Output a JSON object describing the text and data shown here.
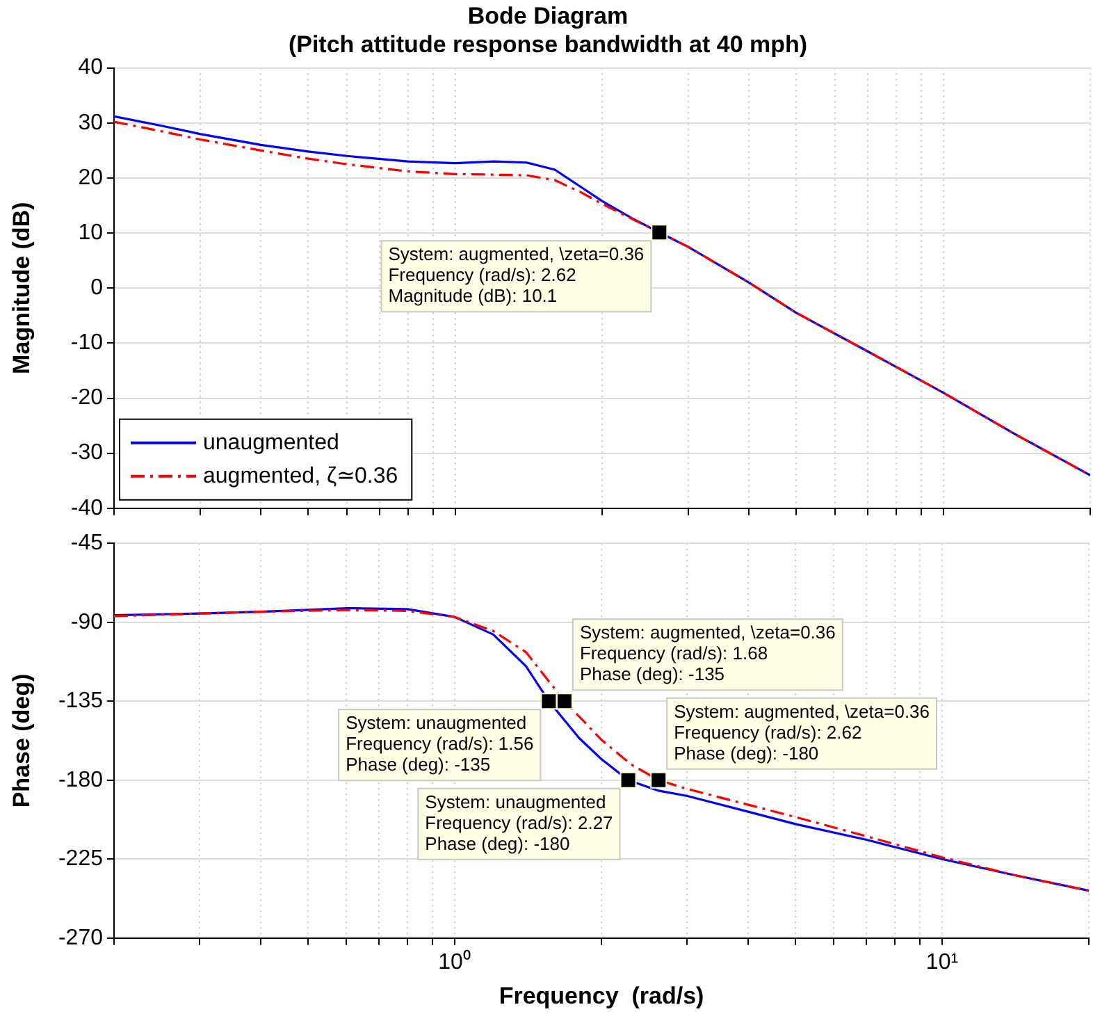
{
  "chart_data": [
    {
      "type": "line",
      "title": "Bode Diagram\n(Pitch attitude response bandwidth at 40 mph)",
      "ylabel": "Magnitude (dB)",
      "log": "x",
      "xlim": [
        0.2,
        20
      ],
      "xticks": [
        {
          "value": 0.2,
          "label": null
        },
        {
          "value": 0.3,
          "label": null
        },
        {
          "value": 0.4,
          "label": null
        },
        {
          "value": 0.5,
          "label": null
        },
        {
          "value": 0.6,
          "label": null
        },
        {
          "value": 0.7,
          "label": null
        },
        {
          "value": 0.8,
          "label": null
        },
        {
          "value": 0.9,
          "label": null
        },
        {
          "value": 1,
          "label": null
        },
        {
          "value": 2,
          "label": null
        },
        {
          "value": 3,
          "label": null
        },
        {
          "value": 4,
          "label": null
        },
        {
          "value": 5,
          "label": null
        },
        {
          "value": 6,
          "label": null
        },
        {
          "value": 7,
          "label": null
        },
        {
          "value": 8,
          "label": null
        },
        {
          "value": 9,
          "label": null
        },
        {
          "value": 10,
          "label": null
        },
        {
          "value": 20,
          "label": null
        }
      ],
      "ylim": [
        -40,
        40
      ],
      "yticks": [
        -40,
        -30,
        -20,
        -10,
        0,
        10,
        20,
        30,
        40
      ],
      "grid": true,
      "legend": "bottom left",
      "tick_labels": "y",
      "marker": "none",
      "series": [
        {
          "name": "unaugmented",
          "color": "#0000ff",
          "line_style": "solid",
          "x": [
            0.2,
            0.25,
            0.3,
            0.4,
            0.5,
            0.6,
            0.8,
            1.0,
            1.2,
            1.4,
            1.6,
            1.8,
            2.0,
            2.3,
            2.62,
            3,
            4,
            5,
            7,
            10,
            14,
            20
          ],
          "values": [
            31.2,
            29.5,
            28,
            26,
            24.8,
            24,
            23,
            22.7,
            23,
            22.8,
            21.5,
            18.5,
            15.8,
            12.7,
            10.1,
            7.5,
            1,
            -4.5,
            -11.5,
            -19,
            -26.5,
            -34
          ]
        },
        {
          "name": "augmented, ζ≃0.36",
          "color": "#ff0000",
          "line_style": "dashed",
          "x": [
            0.2,
            0.25,
            0.3,
            0.4,
            0.5,
            0.6,
            0.8,
            1.0,
            1.2,
            1.4,
            1.6,
            1.8,
            2.0,
            2.3,
            2.62,
            3,
            4,
            5,
            7,
            10,
            14,
            20
          ],
          "values": [
            30.2,
            28.5,
            27,
            25,
            23.5,
            22.5,
            21.2,
            20.7,
            20.6,
            20.5,
            19.6,
            17.5,
            15.3,
            12.6,
            10.1,
            7.5,
            1,
            -4.5,
            -11.5,
            -19,
            -26.5,
            -34
          ]
        }
      ],
      "annotations": [
        {
          "text": "System: augmented, \\zeta=0.36\nFrequency (rad/s): 2.62\nMagnitude (dB): 10.1",
          "x": 2.62,
          "y": 10.1
        }
      ]
    },
    {
      "type": "line",
      "xlabel": "Frequency  (rad/s)",
      "ylabel": "Phase (deg)",
      "log": "x",
      "xlim": [
        0.2,
        20
      ],
      "xticks": [
        {
          "value": 0.2,
          "label": null
        },
        {
          "value": 0.3,
          "label": null
        },
        {
          "value": 0.4,
          "label": null
        },
        {
          "value": 0.5,
          "label": null
        },
        {
          "value": 0.6,
          "label": null
        },
        {
          "value": 0.7,
          "label": null
        },
        {
          "value": 0.8,
          "label": null
        },
        {
          "value": 0.9,
          "label": null
        },
        {
          "value": 1,
          "label": "10⁰"
        },
        {
          "value": 2,
          "label": null
        },
        {
          "value": 3,
          "label": null
        },
        {
          "value": 4,
          "label": null
        },
        {
          "value": 5,
          "label": null
        },
        {
          "value": 6,
          "label": null
        },
        {
          "value": 7,
          "label": null
        },
        {
          "value": 8,
          "label": null
        },
        {
          "value": 9,
          "label": null
        },
        {
          "value": 10,
          "label": "10¹"
        },
        {
          "value": 20,
          "label": null
        }
      ],
      "ylim": [
        -270,
        -45
      ],
      "yticks": [
        -270,
        -225,
        -180,
        -135,
        -90,
        -45
      ],
      "grid": true,
      "marker": "none",
      "series": [
        {
          "color": "#0000ff",
          "line_style": "solid",
          "x": [
            0.2,
            0.3,
            0.4,
            0.6,
            0.8,
            1.0,
            1.2,
            1.4,
            1.56,
            1.8,
            2.0,
            2.27,
            2.62,
            3,
            4,
            5,
            7,
            10,
            14,
            20
          ],
          "values": [
            -86,
            -85,
            -84,
            -82,
            -82.5,
            -87,
            -97,
            -115,
            -135,
            -156,
            -168,
            -180,
            -186,
            -189,
            -198,
            -205,
            -214,
            -225,
            -234,
            -243
          ]
        },
        {
          "color": "#ff0000",
          "line_style": "dashed",
          "x": [
            0.2,
            0.3,
            0.4,
            0.6,
            0.8,
            1.0,
            1.2,
            1.4,
            1.68,
            2.0,
            2.3,
            2.62,
            3,
            4,
            5,
            7,
            10,
            14,
            20
          ],
          "values": [
            -86.5,
            -85,
            -84,
            -83,
            -83.5,
            -87,
            -95,
            -107,
            -135,
            -157,
            -171,
            -180,
            -185,
            -194,
            -201,
            -212,
            -224,
            -234,
            -243
          ]
        }
      ],
      "annotations": [
        {
          "text": "System: augmented, \\zeta=0.36\nFrequency (rad/s): 1.68\nPhase (deg): -135",
          "x": 1.68,
          "y": -135
        },
        {
          "text": "System: augmented, \\zeta=0.36\nFrequency (rad/s): 2.62\nPhase (deg): -180",
          "x": 2.62,
          "y": -180
        },
        {
          "text": "System: unaugmented\nFrequency (rad/s): 1.56\nPhase (deg): -135",
          "x": 1.56,
          "y": -135
        },
        {
          "text": "System: unaugmented\nFrequency (rad/s): 2.27\nPhase (deg): -180",
          "x": 2.27,
          "y": -180
        }
      ]
    }
  ]
}
